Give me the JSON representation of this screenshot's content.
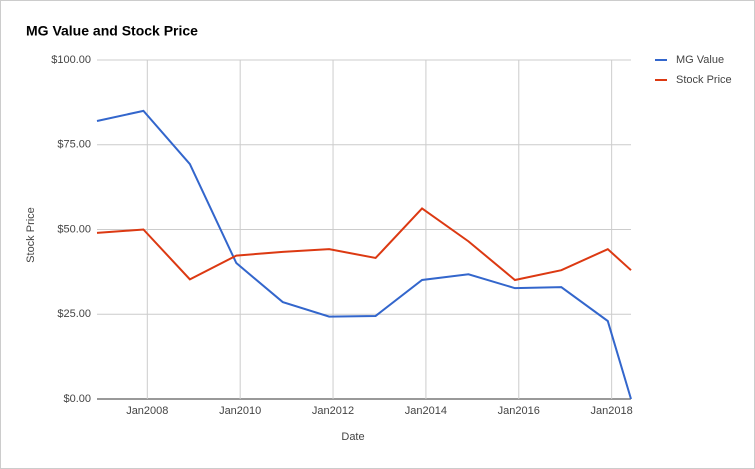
{
  "chart_data": {
    "type": "line",
    "title": "MG Value and Stock Price",
    "x_label": "Date",
    "y_label": "Stock Price",
    "x": [
      "2006-12",
      "2007-12",
      "2008-12",
      "2009-12",
      "2010-12",
      "2011-12",
      "2012-12",
      "2013-12",
      "2014-12",
      "2015-12",
      "2016-12",
      "2017-12",
      "2018-06"
    ],
    "series": [
      {
        "name": "MG Value",
        "color": "#3366cc",
        "values": [
          82,
          85,
          69.3,
          40.1,
          28.6,
          24.3,
          24.5,
          35.1,
          36.8,
          32.7,
          33,
          23,
          0
        ]
      },
      {
        "name": "Stock Price",
        "color": "#dc3912",
        "values": [
          49,
          50,
          35.3,
          42.3,
          43.4,
          44.2,
          41.6,
          56.2,
          46.5,
          35.1,
          38,
          44.2,
          38
        ]
      }
    ],
    "xlim": [
      "2006-12",
      "2018-06"
    ],
    "xticks": [
      {
        "value": "2008-01",
        "label": "Jan2008"
      },
      {
        "value": "2010-01",
        "label": "Jan2010"
      },
      {
        "value": "2012-01",
        "label": "Jan2012"
      },
      {
        "value": "2014-01",
        "label": "Jan2014"
      },
      {
        "value": "2016-01",
        "label": "Jan2016"
      },
      {
        "value": "2018-01",
        "label": "Jan2018"
      }
    ],
    "ylim": [
      0,
      100
    ],
    "yticks": [
      {
        "value": 0,
        "label": "$0.00"
      },
      {
        "value": 25,
        "label": "$25.00"
      },
      {
        "value": 50,
        "label": "$50.00"
      },
      {
        "value": 75,
        "label": "$75.00"
      },
      {
        "value": 100,
        "label": "$100.00"
      }
    ],
    "grid": true,
    "legend": "right"
  }
}
